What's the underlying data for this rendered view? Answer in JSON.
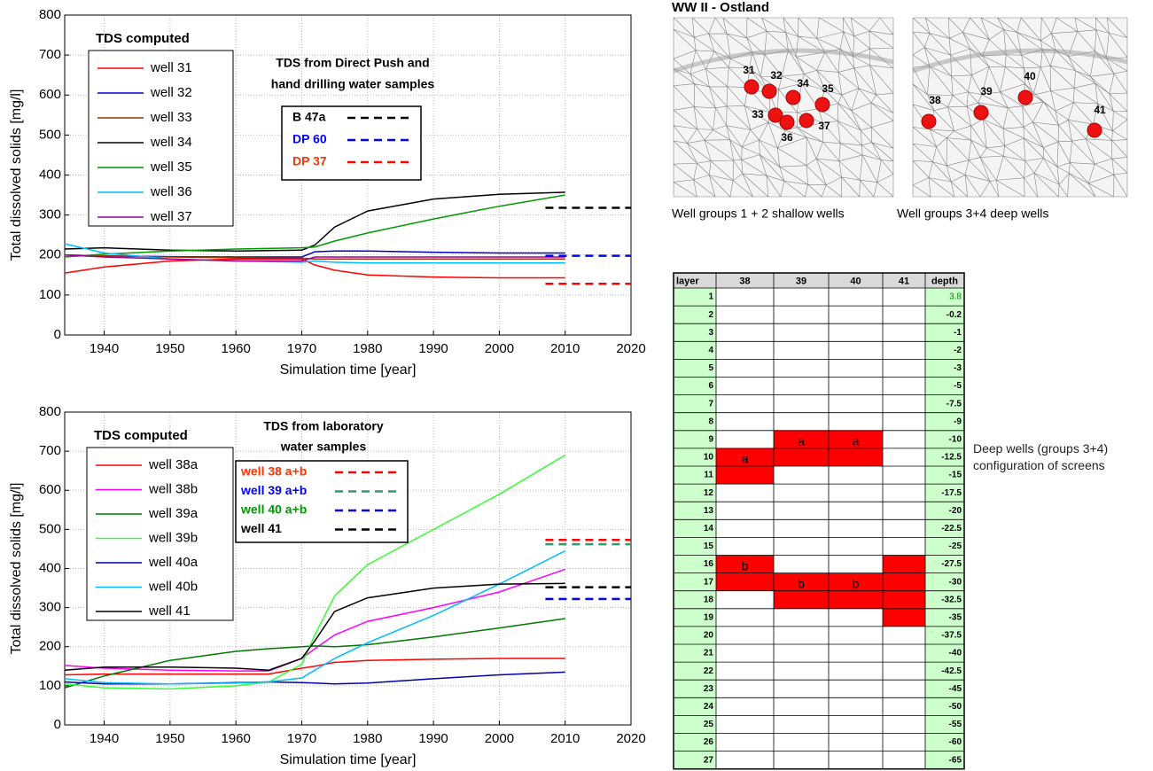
{
  "chart_data": [
    {
      "type": "line",
      "legend_title": "TDS computed",
      "sample_title": [
        "TDS from Direct Push and",
        "hand drilling water samples"
      ],
      "xlabel": "Simulation time [year]",
      "ylabel": "Total dissolved solids [mg/l]",
      "xlim": [
        1934,
        2020
      ],
      "xticks": [
        1940,
        1950,
        1960,
        1970,
        1980,
        1990,
        2000,
        2010,
        2020
      ],
      "ylim": [
        0,
        800
      ],
      "yticks": [
        0,
        100,
        200,
        300,
        400,
        500,
        600,
        700,
        800
      ],
      "grid": true,
      "x": [
        1934,
        1940,
        1950,
        1960,
        1970,
        1972,
        1975,
        1980,
        1990,
        2000,
        2010
      ],
      "series": [
        {
          "name": "well 31",
          "color": "#ff0000",
          "values": [
            155,
            170,
            185,
            190,
            190,
            175,
            162,
            150,
            145,
            143,
            143
          ]
        },
        {
          "name": "well 32",
          "color": "#0000cc",
          "values": [
            200,
            198,
            196,
            195,
            195,
            208,
            210,
            210,
            207,
            205,
            205
          ]
        },
        {
          "name": "well 33",
          "color": "#993300",
          "values": [
            200,
            198,
            195,
            193,
            192,
            190,
            190,
            190,
            190,
            190,
            190
          ]
        },
        {
          "name": "well 34",
          "color": "#000000",
          "values": [
            215,
            218,
            212,
            210,
            212,
            225,
            270,
            310,
            340,
            352,
            357
          ]
        },
        {
          "name": "well 35",
          "color": "#009900",
          "values": [
            195,
            202,
            210,
            215,
            218,
            220,
            235,
            255,
            290,
            322,
            350
          ]
        },
        {
          "name": "well 36",
          "color": "#00bbff",
          "values": [
            228,
            205,
            190,
            185,
            182,
            185,
            182,
            180,
            180,
            180,
            180
          ]
        },
        {
          "name": "well 37",
          "color": "#990099",
          "values": [
            200,
            195,
            190,
            185,
            185,
            195,
            195,
            195,
            195,
            195,
            195
          ]
        }
      ],
      "sample_x": [
        2007,
        2020
      ],
      "samples": [
        {
          "name": "B 47a",
          "color": "#000000",
          "label_color": "#000000",
          "value": 318
        },
        {
          "name": "DP 60",
          "color": "#0000ff",
          "label_color": "#0000ff",
          "value": 198
        },
        {
          "name": "DP 37",
          "color": "#ff0000",
          "label_color": "#ff3300",
          "value": 128
        }
      ]
    },
    {
      "type": "line",
      "legend_title": "TDS computed",
      "sample_title": [
        "TDS from laboratory",
        "water samples"
      ],
      "xlabel": "Simulation time [year]",
      "ylabel": "Total dissolved solids [mg/l]",
      "xlim": [
        1934,
        2020
      ],
      "xticks": [
        1940,
        1950,
        1960,
        1970,
        1980,
        1990,
        2000,
        2010,
        2020
      ],
      "ylim": [
        0,
        800
      ],
      "yticks": [
        0,
        100,
        200,
        300,
        400,
        500,
        600,
        700,
        800
      ],
      "grid": true,
      "x": [
        1934,
        1940,
        1950,
        1960,
        1965,
        1970,
        1972,
        1975,
        1980,
        1990,
        2000,
        2010
      ],
      "series": [
        {
          "name": "well 38a",
          "color": "#ff0000",
          "values": [
            128,
            130,
            130,
            130,
            130,
            145,
            150,
            160,
            165,
            168,
            170,
            170
          ]
        },
        {
          "name": "well 38b",
          "color": "#ff00ff",
          "values": [
            152,
            145,
            140,
            138,
            138,
            170,
            195,
            230,
            265,
            300,
            340,
            398
          ]
        },
        {
          "name": "well 39a",
          "color": "#007700",
          "values": [
            95,
            125,
            165,
            188,
            195,
            200,
            202,
            200,
            205,
            225,
            248,
            272
          ]
        },
        {
          "name": "well 39b",
          "color": "#33ff33",
          "values": [
            105,
            95,
            92,
            100,
            110,
            155,
            230,
            330,
            410,
            500,
            590,
            690
          ]
        },
        {
          "name": "well 40a",
          "color": "#0000aa",
          "values": [
            110,
            105,
            105,
            108,
            110,
            108,
            107,
            105,
            107,
            118,
            128,
            135
          ]
        },
        {
          "name": "well 40b",
          "color": "#00bbff",
          "values": [
            118,
            108,
            105,
            107,
            110,
            120,
            140,
            170,
            210,
            280,
            360,
            445
          ]
        },
        {
          "name": "well 41",
          "color": "#000000",
          "values": [
            140,
            148,
            148,
            145,
            140,
            170,
            215,
            290,
            325,
            350,
            360,
            362
          ]
        }
      ],
      "sample_x": [
        2007,
        2020
      ],
      "samples": [
        {
          "name": "well 38 a+b",
          "color": "#ff0000",
          "label_color": "#ff3300",
          "value": 473
        },
        {
          "name": "well 39 a+b",
          "color": "#339966",
          "label_color": "#0000ff",
          "value": 462
        },
        {
          "name": "well 40 a+b",
          "color": "#0000ff",
          "label_color": "#009900",
          "value": 322
        },
        {
          "name": "well 41",
          "color": "#000000",
          "label_color": "#000000",
          "value": 352
        }
      ]
    }
  ],
  "map": {
    "title": "WW II - Ostland",
    "panels": [
      {
        "caption": "Well groups 1 + 2 shallow wells",
        "wells": [
          "31",
          "32",
          "34",
          "35",
          "33",
          "36",
          "37"
        ]
      },
      {
        "caption": "Well groups 3+4 deep wells",
        "wells": [
          "38",
          "39",
          "40",
          "41"
        ]
      }
    ]
  },
  "table": {
    "header": [
      "layer",
      "38",
      "39",
      "40",
      "41",
      "depth"
    ],
    "layers": [
      "1",
      "2",
      "3",
      "4",
      "5",
      "6",
      "7",
      "8",
      "9",
      "10",
      "11",
      "12",
      "13",
      "14",
      "15",
      "16",
      "17",
      "18",
      "19",
      "20",
      "21",
      "22",
      "23",
      "24",
      "25",
      "26",
      "27"
    ],
    "depths": [
      "3.8",
      "-0.2",
      "-1",
      "-2",
      "-3",
      "-5",
      "-7.5",
      "-9",
      "-10",
      "-12.5",
      "-15",
      "-17.5",
      "-20",
      "-22.5",
      "-25",
      "-27.5",
      "-30",
      "-32.5",
      "-35",
      "-37.5",
      "-40",
      "-42.5",
      "-45",
      "-50",
      "-55",
      "-60",
      "-65"
    ],
    "screens": [
      {
        "column": 1,
        "from": 10,
        "to": 11,
        "label": "a"
      },
      {
        "column": 1,
        "from": 16,
        "to": 17,
        "label": "b"
      },
      {
        "column": 2,
        "from": 9,
        "to": 10,
        "label": "a"
      },
      {
        "column": 2,
        "from": 17,
        "to": 18,
        "label": "b"
      },
      {
        "column": 3,
        "from": 9,
        "to": 10,
        "label": "a"
      },
      {
        "column": 3,
        "from": 17,
        "to": 18,
        "label": "b"
      },
      {
        "column": 4,
        "from": 16,
        "to": 19
      }
    ],
    "note": "Deep wells (groups 3+4) configuration of screens"
  }
}
